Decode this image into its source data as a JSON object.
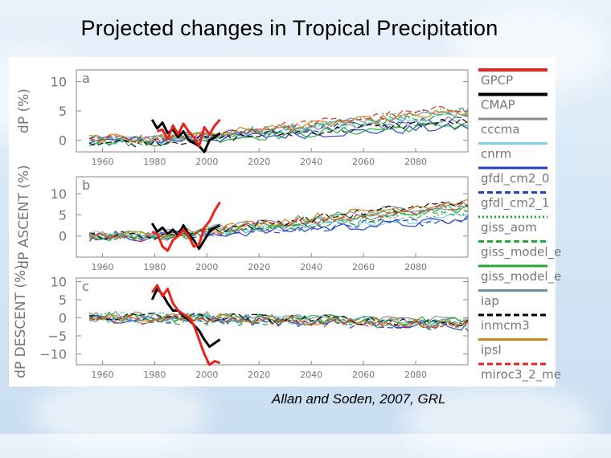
{
  "slide": {
    "title": "Projected changes in Tropical Precipitation",
    "citation": "Allan and Soden, 2007, GRL"
  },
  "chart_data": {
    "type": "line",
    "xlim": [
      1950,
      2100
    ],
    "x_ticks": [
      1960,
      1980,
      2000,
      2020,
      2040,
      2060,
      2080
    ],
    "legend_position": "right",
    "legend": [
      {
        "name": "GPCP",
        "color": "#e8231e",
        "dash": "solid"
      },
      {
        "name": "CMAP",
        "color": "#000000",
        "dash": "solid"
      },
      {
        "name": "cccma",
        "color": "#8a8a8a",
        "dash": "solid"
      },
      {
        "name": "cnrm",
        "color": "#7fd0ea",
        "dash": "solid"
      },
      {
        "name": "gfdl_cm2_0",
        "color": "#1f3fc4",
        "dash": "solid"
      },
      {
        "name": "gfdl_cm2_1",
        "color": "#1f3fc4",
        "dash": "dashed"
      },
      {
        "name": "giss_aom",
        "color": "#22a833",
        "dash": "dotted"
      },
      {
        "name": "giss_model_e",
        "color": "#22a833",
        "dash": "dashed"
      },
      {
        "name": "giss_model_e",
        "color": "#22a833",
        "dash": "solid"
      },
      {
        "name": "iap",
        "color": "#6f8fa6",
        "dash": "solid"
      },
      {
        "name": "inmcm3",
        "color": "#000000",
        "dash": "dashed"
      },
      {
        "name": "ipsl",
        "color": "#c9861b",
        "dash": "solid"
      },
      {
        "name": "miroc3_2_me",
        "color": "#e8231e",
        "dash": "dashed"
      }
    ],
    "panels": [
      {
        "label": "a",
        "ylabel": "dP (%)",
        "ylim": [
          -2,
          12
        ],
        "y_ticks": [
          0,
          5,
          10
        ],
        "observations": {
          "GPCP": {
            "x": [
              1981,
              1983,
              1985,
              1987,
              1989,
              1991,
              1993,
              1995,
              1997,
              1999,
              2001,
              2003,
              2005
            ],
            "y": [
              1.5,
              1.8,
              0.2,
              2.5,
              1.0,
              2.8,
              1.5,
              0.5,
              -1.0,
              2.2,
              1.0,
              2.5,
              3.5
            ]
          },
          "CMAP": {
            "x": [
              1979,
              1981,
              1983,
              1985,
              1987,
              1989,
              1991,
              1993,
              1995,
              1997,
              1999,
              2001,
              2003,
              2005
            ],
            "y": [
              3.5,
              2.0,
              3.0,
              1.2,
              1.8,
              0.5,
              1.5,
              0.0,
              -0.5,
              -1.0,
              -2.0,
              0.0,
              0.5,
              1.2
            ]
          }
        },
        "model_trend": {
          "x": [
            1950,
            2100
          ],
          "y": [
            0.0,
            4.0
          ]
        }
      },
      {
        "label": "b",
        "ylabel": "dP ASCENT (%)",
        "ylim": [
          -5,
          14
        ],
        "y_ticks": [
          0,
          5,
          10
        ],
        "observations": {
          "GPCP": {
            "x": [
              1979,
              1981,
              1983,
              1985,
              1987,
              1989,
              1991,
              1993,
              1995,
              1997,
              1999,
              2001,
              2003,
              2005
            ],
            "y": [
              1.0,
              0.5,
              -2.5,
              -3.5,
              -1.0,
              0.0,
              1.5,
              0.0,
              -2.5,
              -2.0,
              2.0,
              3.5,
              6.0,
              8.0
            ]
          },
          "CMAP": {
            "x": [
              1979,
              1981,
              1983,
              1985,
              1987,
              1989,
              1991,
              1993,
              1995,
              1997,
              1999,
              2001,
              2003,
              2005
            ],
            "y": [
              3.0,
              1.0,
              2.0,
              0.5,
              1.5,
              0.0,
              2.5,
              0.5,
              -1.0,
              -3.0,
              -1.0,
              1.0,
              2.0,
              2.5
            ]
          }
        },
        "model_trend": {
          "x": [
            1950,
            2100
          ],
          "y": [
            0.0,
            6.0
          ]
        }
      },
      {
        "label": "c",
        "ylabel": "dP DESCENT (%)",
        "ylim": [
          -13,
          11
        ],
        "y_ticks": [
          -10,
          -5,
          0,
          5,
          10
        ],
        "observations": {
          "GPCP": {
            "x": [
              1979,
              1981,
              1983,
              1985,
              1987,
              1989,
              1991,
              1993,
              1995,
              1997,
              1999,
              2001,
              2003,
              2005
            ],
            "y": [
              7.0,
              9.0,
              6.0,
              8.0,
              4.0,
              2.0,
              1.0,
              0.0,
              -2.0,
              -6.0,
              -10.0,
              -13.0,
              -12.0,
              -12.5
            ]
          },
          "CMAP": {
            "x": [
              1979,
              1981,
              1983,
              1985,
              1987,
              1989,
              1991,
              1993,
              1995,
              1997,
              1999,
              2001,
              2003,
              2005
            ],
            "y": [
              5.0,
              8.0,
              6.5,
              4.0,
              2.0,
              2.0,
              0.5,
              -0.5,
              -2.0,
              -3.5,
              -6.0,
              -8.0,
              -7.0,
              -6.0
            ]
          }
        },
        "model_trend": {
          "x": [
            1950,
            2100
          ],
          "y": [
            0.0,
            -1.5
          ]
        }
      }
    ]
  }
}
